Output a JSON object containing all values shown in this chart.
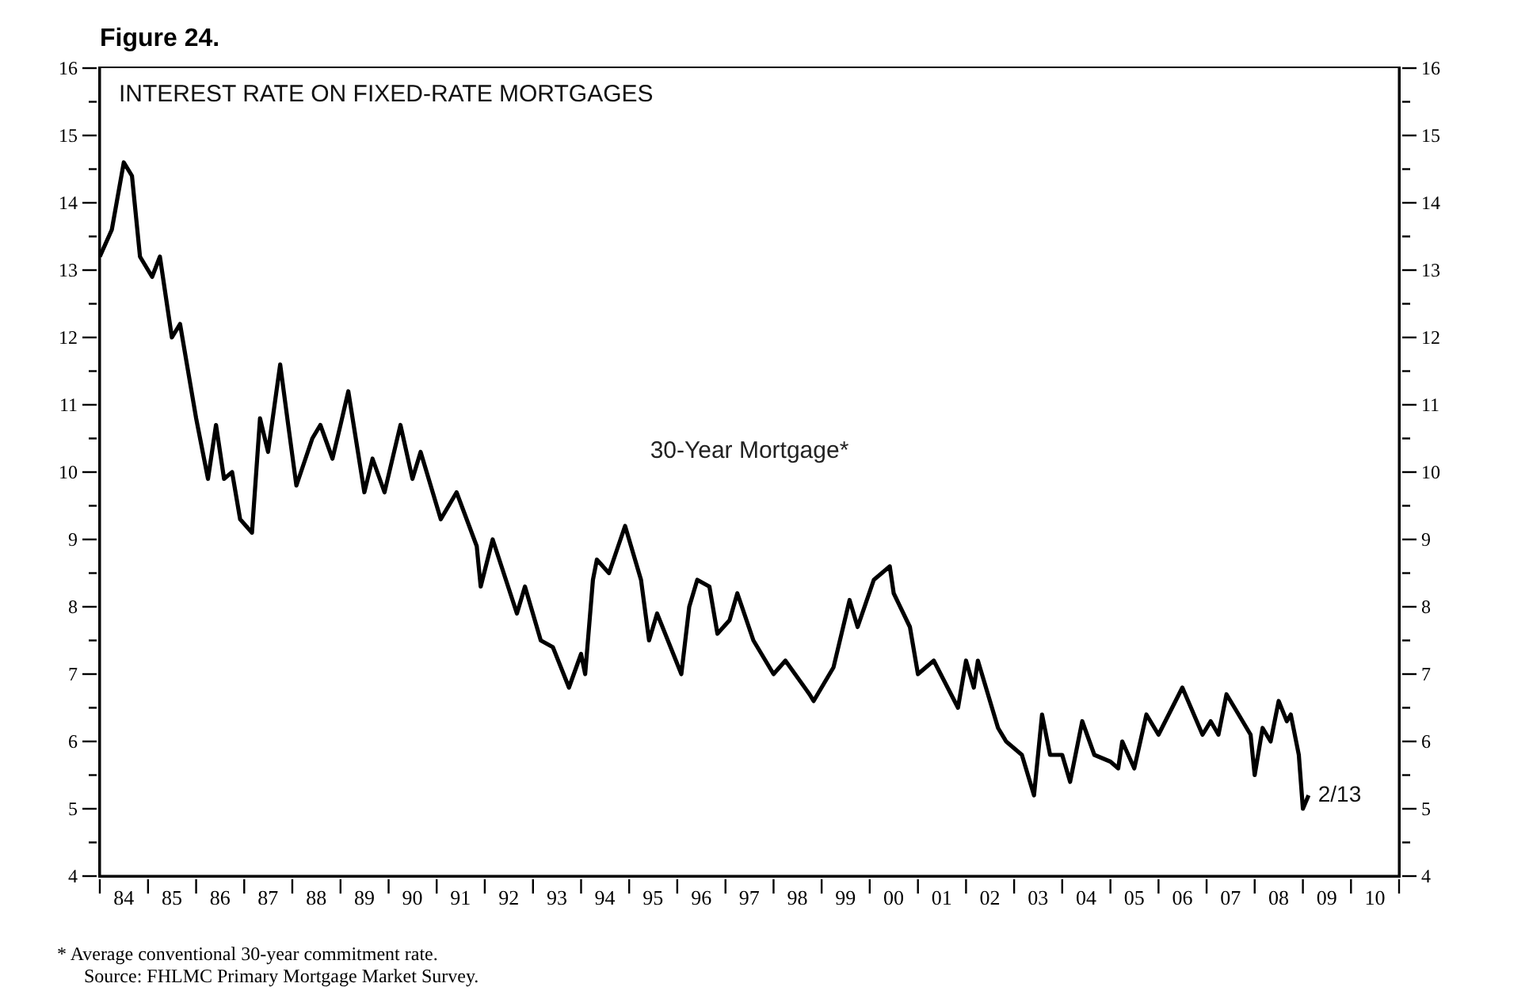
{
  "chart_data": {
    "type": "line",
    "title": "Figure 24.",
    "subtitle": "INTEREST RATE ON FIXED-RATE MORTGAGES",
    "x": [
      "1984-01",
      "1984-04",
      "1984-07",
      "1984-09",
      "1984-11",
      "1985-02",
      "1985-04",
      "1985-07",
      "1985-09",
      "1986-01",
      "1986-04",
      "1986-06",
      "1986-08",
      "1986-10",
      "1986-12",
      "1987-03",
      "1987-05",
      "1987-07",
      "1987-10",
      "1987-12",
      "1988-02",
      "1988-06",
      "1988-08",
      "1988-11",
      "1989-01",
      "1989-03",
      "1989-07",
      "1989-09",
      "1989-12",
      "1990-04",
      "1990-07",
      "1990-09",
      "1991-02",
      "1991-06",
      "1991-11",
      "1991-12",
      "1992-03",
      "1992-09",
      "1992-11",
      "1993-03",
      "1993-06",
      "1993-10",
      "1994-01",
      "1994-02",
      "1994-04",
      "1994-05",
      "1994-08",
      "1994-12",
      "1995-04",
      "1995-06",
      "1995-08",
      "1996-02",
      "1996-04",
      "1996-06",
      "1996-09",
      "1996-11",
      "1997-02",
      "1997-04",
      "1997-08",
      "1998-01",
      "1998-04",
      "1998-10",
      "1998-11",
      "1999-04",
      "1999-08",
      "1999-10",
      "2000-02",
      "2000-06",
      "2000-07",
      "2000-11",
      "2001-01",
      "2001-05",
      "2001-11",
      "2002-01",
      "2002-03",
      "2002-04",
      "2002-09",
      "2002-11",
      "2003-03",
      "2003-06",
      "2003-08",
      "2003-10",
      "2004-01",
      "2004-03",
      "2004-06",
      "2004-09",
      "2005-01",
      "2005-03",
      "2005-04",
      "2005-07",
      "2005-10",
      "2006-01",
      "2006-07",
      "2006-12",
      "2007-02",
      "2007-04",
      "2007-06",
      "2007-09",
      "2007-12",
      "2008-01",
      "2008-03",
      "2008-05",
      "2008-07",
      "2008-09",
      "2008-10",
      "2008-12",
      "2009-01",
      "2009-02-13"
    ],
    "series": [
      {
        "name": "30-Year Mortgage*",
        "color": "#000000",
        "values": [
          13.2,
          13.6,
          14.6,
          14.4,
          13.2,
          12.9,
          13.2,
          12.0,
          12.2,
          10.8,
          9.9,
          10.7,
          9.9,
          10.0,
          9.3,
          9.1,
          10.8,
          10.3,
          11.6,
          10.7,
          9.8,
          10.5,
          10.7,
          10.2,
          10.7,
          11.2,
          9.7,
          10.2,
          9.7,
          10.7,
          9.9,
          10.3,
          9.3,
          9.7,
          8.9,
          8.3,
          9.0,
          7.9,
          8.3,
          7.5,
          7.4,
          6.8,
          7.3,
          7.0,
          8.4,
          8.7,
          8.5,
          9.2,
          8.4,
          7.5,
          7.9,
          7.0,
          8.0,
          8.4,
          8.3,
          7.6,
          7.8,
          8.2,
          7.5,
          7.0,
          7.2,
          6.7,
          6.6,
          7.1,
          8.1,
          7.7,
          8.4,
          8.6,
          8.2,
          7.7,
          7.0,
          7.2,
          6.5,
          7.2,
          6.8,
          7.2,
          6.2,
          6.0,
          5.8,
          5.2,
          6.4,
          5.8,
          5.8,
          5.4,
          6.3,
          5.8,
          5.7,
          5.6,
          6.0,
          5.6,
          6.4,
          6.1,
          6.8,
          6.1,
          6.3,
          6.1,
          6.7,
          6.4,
          6.1,
          5.5,
          6.2,
          6.0,
          6.6,
          6.3,
          6.4,
          5.8,
          5.0,
          5.2
        ]
      }
    ],
    "xlim": [
      "1984",
      "2011"
    ],
    "xticks": [
      {
        "value": "1984",
        "label": null
      },
      {
        "value": "1985",
        "label": null
      },
      {
        "value": "1986",
        "label": null
      },
      {
        "value": "1987",
        "label": null
      },
      {
        "value": "1988",
        "label": null
      },
      {
        "value": "1989",
        "label": null
      },
      {
        "value": "1990",
        "label": null
      },
      {
        "value": "1991",
        "label": null
      },
      {
        "value": "1992",
        "label": null
      },
      {
        "value": "1993",
        "label": null
      },
      {
        "value": "1994",
        "label": null
      },
      {
        "value": "1995",
        "label": null
      },
      {
        "value": "1996",
        "label": null
      },
      {
        "value": "1997",
        "label": null
      },
      {
        "value": "1998",
        "label": null
      },
      {
        "value": "1999",
        "label": null
      },
      {
        "value": "2000",
        "label": null
      },
      {
        "value": "2001",
        "label": null
      },
      {
        "value": "2002",
        "label": null
      },
      {
        "value": "2003",
        "label": null
      },
      {
        "value": "2004",
        "label": null
      },
      {
        "value": "2005",
        "label": null
      },
      {
        "value": "2006",
        "label": null
      },
      {
        "value": "2007",
        "label": null
      },
      {
        "value": "2008",
        "label": null
      },
      {
        "value": "2009",
        "label": null
      },
      {
        "value": "2010",
        "label": null
      },
      {
        "value": "2011",
        "label": null
      },
      {
        "value": "1984-07",
        "label": "84"
      },
      {
        "value": "1985-07",
        "label": "85"
      },
      {
        "value": "1986-07",
        "label": "86"
      },
      {
        "value": "1987-07",
        "label": "87"
      },
      {
        "value": "1988-07",
        "label": "88"
      },
      {
        "value": "1989-07",
        "label": "89"
      },
      {
        "value": "1990-07",
        "label": "90"
      },
      {
        "value": "1991-07",
        "label": "91"
      },
      {
        "value": "1992-07",
        "label": "92"
      },
      {
        "value": "1993-07",
        "label": "93"
      },
      {
        "value": "1994-07",
        "label": "94"
      },
      {
        "value": "1995-07",
        "label": "95"
      },
      {
        "value": "1996-07",
        "label": "96"
      },
      {
        "value": "1997-07",
        "label": "97"
      },
      {
        "value": "1998-07",
        "label": "98"
      },
      {
        "value": "1999-07",
        "label": "99"
      },
      {
        "value": "2000-07",
        "label": "00"
      },
      {
        "value": "2001-07",
        "label": "01"
      },
      {
        "value": "2002-07",
        "label": "02"
      },
      {
        "value": "2003-07",
        "label": "03"
      },
      {
        "value": "2004-07",
        "label": "04"
      },
      {
        "value": "2005-07",
        "label": "05"
      },
      {
        "value": "2006-07",
        "label": "06"
      },
      {
        "value": "2007-07",
        "label": "07"
      },
      {
        "value": "2008-07",
        "label": "08"
      },
      {
        "value": "2009-07",
        "label": "09"
      },
      {
        "value": "2010-07",
        "label": "10"
      }
    ],
    "ylim": [
      4,
      16
    ],
    "yticks": [
      4,
      {
        "value": 4.5,
        "label": null
      },
      5,
      {
        "value": 5.5,
        "label": null
      },
      6,
      {
        "value": 6.5,
        "label": null
      },
      7,
      {
        "value": 7.5,
        "label": null
      },
      8,
      {
        "value": 8.5,
        "label": null
      },
      9,
      {
        "value": 9.5,
        "label": null
      },
      10,
      {
        "value": 10.5,
        "label": null
      },
      11,
      {
        "value": 11.5,
        "label": null
      },
      12,
      {
        "value": 12.5,
        "label": null
      },
      13,
      {
        "value": 13.5,
        "label": null
      },
      14,
      {
        "value": 14.5,
        "label": null
      },
      15,
      {
        "value": 15.5,
        "label": null
      },
      16
    ],
    "y2lim": [
      4,
      16
    ],
    "y2ticks": [
      4,
      {
        "value": 4.5,
        "label": null
      },
      5,
      {
        "value": 5.5,
        "label": null
      },
      6,
      {
        "value": 6.5,
        "label": null
      },
      7,
      {
        "value": 7.5,
        "label": null
      },
      8,
      {
        "value": 8.5,
        "label": null
      },
      9,
      {
        "value": 9.5,
        "label": null
      },
      10,
      {
        "value": 10.5,
        "label": null
      },
      11,
      {
        "value": 11.5,
        "label": null
      },
      12,
      {
        "value": 12.5,
        "label": null
      },
      13,
      {
        "value": 13.5,
        "label": null
      },
      14,
      {
        "value": 14.5,
        "label": null
      },
      15,
      {
        "value": 15.5,
        "label": null
      },
      16
    ],
    "annotations": [
      {
        "text": "2/13",
        "x": "2009-02-13",
        "y": 5.2
      },
      "* Average conventional 30-year commitment rate.",
      "Source: FHLMC Primary Mortgage Market Survey."
    ]
  }
}
